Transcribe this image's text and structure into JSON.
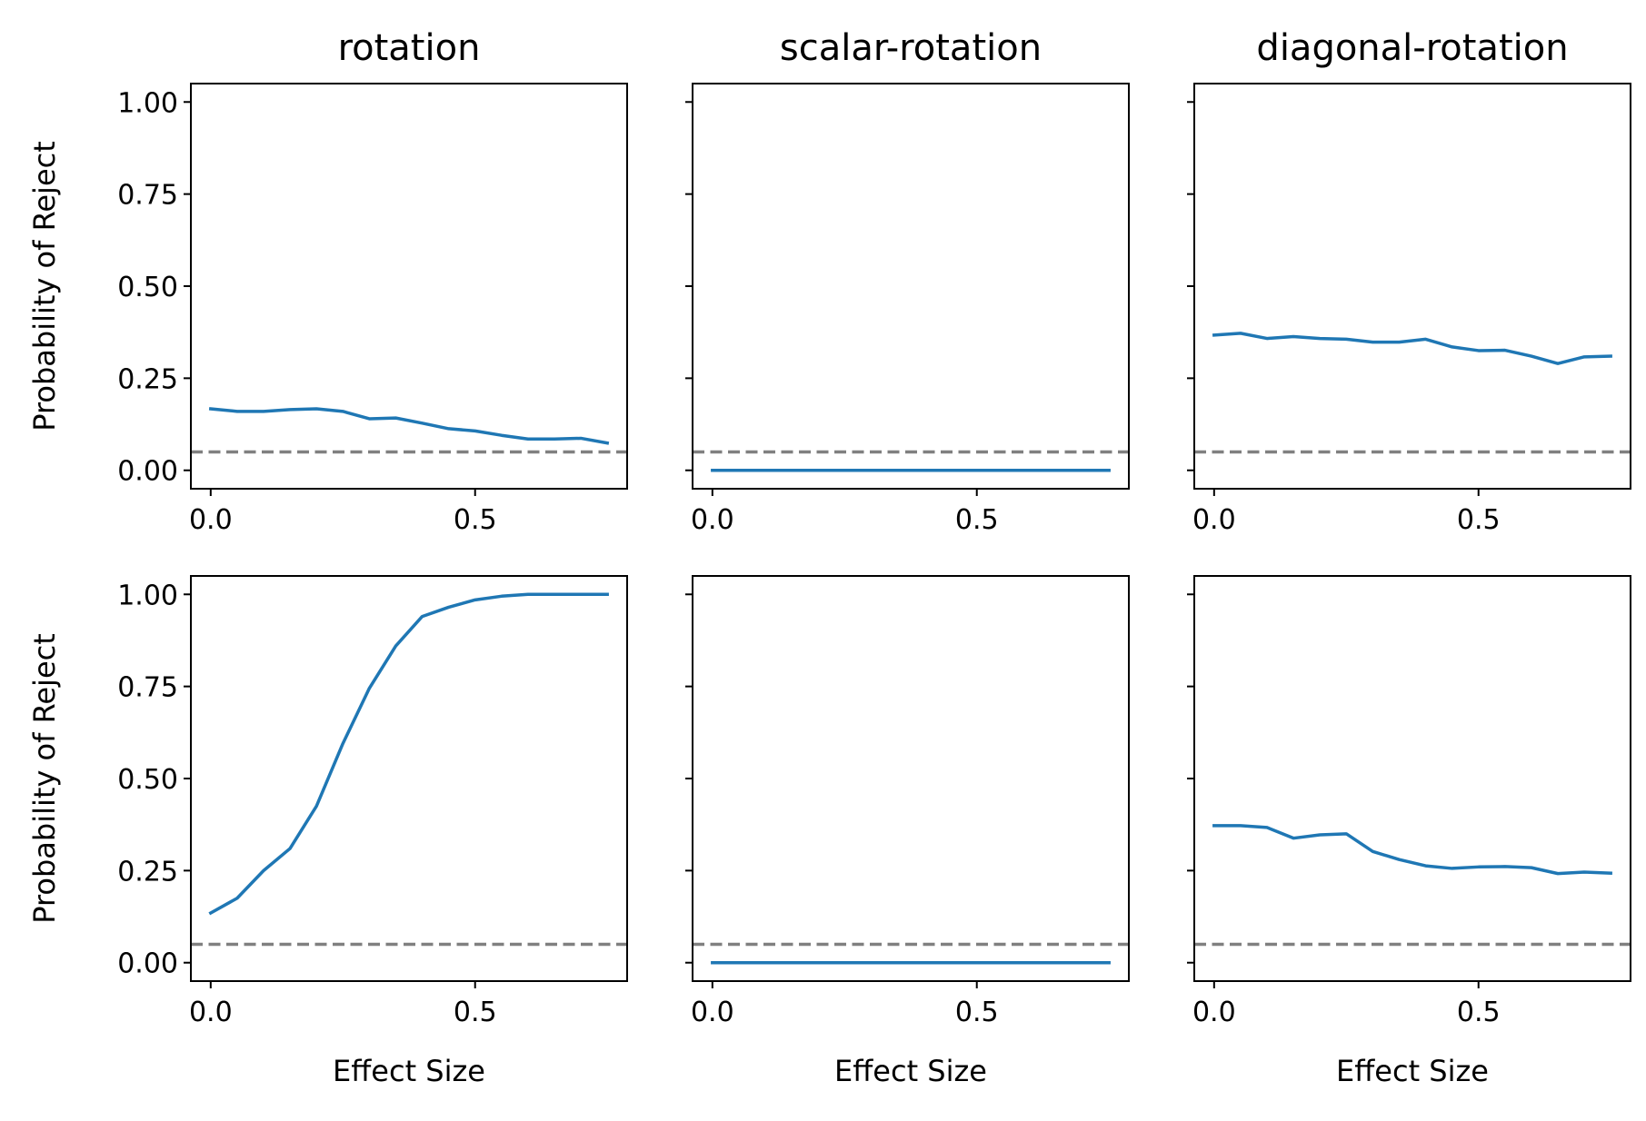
{
  "colors": {
    "series": "#1f77b4",
    "reference": "#808080",
    "axes": "#000000",
    "background": "#ffffff"
  },
  "chart_data": [
    {
      "type": "line",
      "title": "rotation",
      "xlabel": "",
      "ylabel": "Probability of Reject",
      "xlim": [
        -0.0375,
        0.7875
      ],
      "ylim": [
        -0.05,
        1.05
      ],
      "xticks": [
        "0.0",
        "0.5"
      ],
      "yticks": [
        "0.00",
        "0.25",
        "0.50",
        "0.75",
        "1.00"
      ],
      "reference_line": 0.05,
      "x": [
        0.0,
        0.05,
        0.1,
        0.15,
        0.2,
        0.25,
        0.3,
        0.35,
        0.4,
        0.45,
        0.5,
        0.55,
        0.6,
        0.65,
        0.7,
        0.75
      ],
      "series": [
        {
          "values": [
            0.167,
            0.16,
            0.16,
            0.165,
            0.167,
            0.16,
            0.14,
            0.142,
            0.128,
            0.113,
            0.107,
            0.095,
            0.085,
            0.085,
            0.087,
            0.074
          ]
        }
      ]
    },
    {
      "type": "line",
      "title": "scalar-rotation",
      "xlabel": "",
      "ylabel": "",
      "xlim": [
        -0.0375,
        0.7875
      ],
      "ylim": [
        -0.05,
        1.05
      ],
      "xticks": [
        "0.0",
        "0.5"
      ],
      "yticks": [],
      "reference_line": 0.05,
      "x": [
        0.0,
        0.05,
        0.1,
        0.15,
        0.2,
        0.25,
        0.3,
        0.35,
        0.4,
        0.45,
        0.5,
        0.55,
        0.6,
        0.65,
        0.7,
        0.75
      ],
      "series": [
        {
          "values": [
            0,
            0,
            0,
            0,
            0,
            0,
            0,
            0,
            0,
            0,
            0,
            0,
            0,
            0,
            0,
            0
          ]
        }
      ]
    },
    {
      "type": "line",
      "title": "diagonal-rotation",
      "xlabel": "",
      "ylabel": "",
      "xlim": [
        -0.0375,
        0.7875
      ],
      "ylim": [
        -0.05,
        1.05
      ],
      "xticks": [
        "0.0",
        "0.5"
      ],
      "yticks": [],
      "reference_line": 0.05,
      "x": [
        0.0,
        0.05,
        0.1,
        0.15,
        0.2,
        0.25,
        0.3,
        0.35,
        0.4,
        0.45,
        0.5,
        0.55,
        0.6,
        0.65,
        0.7,
        0.75
      ],
      "series": [
        {
          "values": [
            0.367,
            0.372,
            0.358,
            0.363,
            0.358,
            0.356,
            0.348,
            0.348,
            0.356,
            0.335,
            0.325,
            0.326,
            0.31,
            0.29,
            0.308,
            0.31
          ]
        }
      ]
    },
    {
      "type": "line",
      "title": "",
      "xlabel": "Effect Size",
      "ylabel": "Probability of Reject",
      "xlim": [
        -0.0375,
        0.7875
      ],
      "ylim": [
        -0.05,
        1.05
      ],
      "xticks": [
        "0.0",
        "0.5"
      ],
      "yticks": [
        "0.00",
        "0.25",
        "0.50",
        "0.75",
        "1.00"
      ],
      "reference_line": 0.05,
      "x": [
        0.0,
        0.05,
        0.1,
        0.15,
        0.2,
        0.25,
        0.3,
        0.35,
        0.4,
        0.45,
        0.5,
        0.55,
        0.6,
        0.65,
        0.7,
        0.75
      ],
      "series": [
        {
          "values": [
            0.135,
            0.175,
            0.25,
            0.31,
            0.425,
            0.595,
            0.745,
            0.86,
            0.94,
            0.965,
            0.985,
            0.995,
            1.0,
            1.0,
            1.0,
            1.0
          ]
        }
      ]
    },
    {
      "type": "line",
      "title": "",
      "xlabel": "Effect Size",
      "ylabel": "",
      "xlim": [
        -0.0375,
        0.7875
      ],
      "ylim": [
        -0.05,
        1.05
      ],
      "xticks": [
        "0.0",
        "0.5"
      ],
      "yticks": [],
      "reference_line": 0.05,
      "x": [
        0.0,
        0.05,
        0.1,
        0.15,
        0.2,
        0.25,
        0.3,
        0.35,
        0.4,
        0.45,
        0.5,
        0.55,
        0.6,
        0.65,
        0.7,
        0.75
      ],
      "series": [
        {
          "values": [
            0,
            0,
            0,
            0,
            0,
            0,
            0,
            0,
            0,
            0,
            0,
            0,
            0,
            0,
            0,
            0
          ]
        }
      ]
    },
    {
      "type": "line",
      "title": "",
      "xlabel": "Effect Size",
      "ylabel": "",
      "xlim": [
        -0.0375,
        0.7875
      ],
      "ylim": [
        -0.05,
        1.05
      ],
      "xticks": [
        "0.0",
        "0.5"
      ],
      "yticks": [],
      "reference_line": 0.05,
      "x": [
        0.0,
        0.05,
        0.1,
        0.15,
        0.2,
        0.25,
        0.3,
        0.35,
        0.4,
        0.45,
        0.5,
        0.55,
        0.6,
        0.65,
        0.7,
        0.75
      ],
      "series": [
        {
          "values": [
            0.372,
            0.372,
            0.367,
            0.338,
            0.347,
            0.35,
            0.302,
            0.28,
            0.263,
            0.256,
            0.26,
            0.261,
            0.258,
            0.242,
            0.246,
            0.243
          ]
        }
      ]
    }
  ]
}
